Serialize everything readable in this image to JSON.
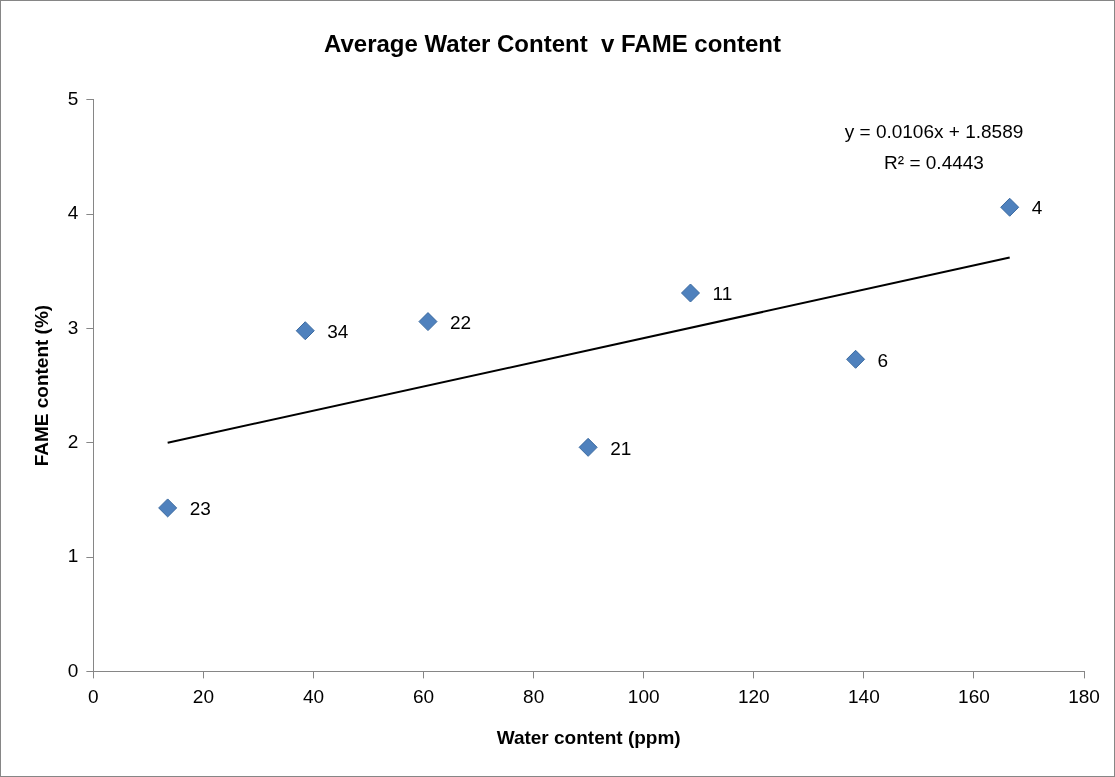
{
  "chart_data": {
    "type": "scatter",
    "title": "Average Water Content  v FAME content",
    "xlabel": "Water content (ppm)",
    "ylabel": "FAME content (%)",
    "xlim": [
      0,
      180
    ],
    "xticks": [
      0,
      20,
      40,
      60,
      80,
      100,
      120,
      140,
      160,
      180
    ],
    "ylim": [
      0,
      5
    ],
    "yticks": [
      0,
      1,
      2,
      3,
      4,
      5
    ],
    "legend": false,
    "marker": "diamond",
    "series": [
      {
        "color": "#4f81bd",
        "x": [
          13.5,
          38.5,
          60.8,
          89.9,
          108.5,
          138.5,
          166.5
        ],
        "values": [
          1.43,
          2.98,
          3.06,
          1.96,
          3.31,
          2.73,
          4.06
        ]
      },
      {
        "type": "line",
        "color": "#000000",
        "marker": "none",
        "x": [
          13.5,
          166.5
        ],
        "values": [
          2.0,
          3.62
        ]
      }
    ],
    "annotations": [
      {
        "text": "23",
        "x": 13.5,
        "y": 1.43
      },
      {
        "text": "34",
        "x": 38.5,
        "y": 2.98
      },
      {
        "text": "22",
        "x": 60.8,
        "y": 3.06
      },
      {
        "text": "21",
        "x": 89.9,
        "y": 1.96
      },
      {
        "text": "11",
        "x": 108.5,
        "y": 3.31
      },
      {
        "text": "6",
        "x": 138.5,
        "y": 2.73
      },
      {
        "text": "4",
        "x": 166.5,
        "y": 4.06
      },
      "y = 0.0106x + 1.8589",
      "R² = 0.4443"
    ]
  }
}
